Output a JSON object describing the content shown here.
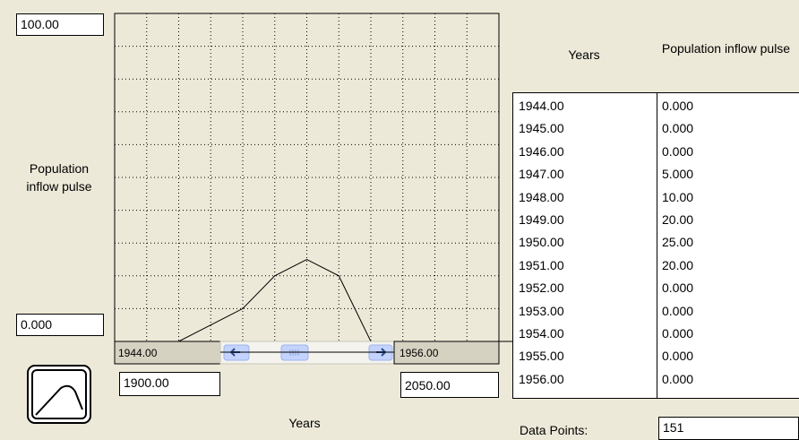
{
  "y_axis": {
    "max_field": "100.00",
    "min_field": "0.000",
    "label": "Population inflow pulse"
  },
  "x_axis": {
    "view_start": "1944.00",
    "view_end": "1956.00",
    "min_field": "1900.00",
    "max_field": "2050.00",
    "label": "Years"
  },
  "table": {
    "headers": [
      "Years",
      "Population inflow pulse"
    ],
    "rows": [
      [
        "1944.00",
        "0.000"
      ],
      [
        "1945.00",
        "0.000"
      ],
      [
        "1946.00",
        "0.000"
      ],
      [
        "1947.00",
        "5.000"
      ],
      [
        "1948.00",
        "10.00"
      ],
      [
        "1949.00",
        "20.00"
      ],
      [
        "1950.00",
        "25.00"
      ],
      [
        "1951.00",
        "20.00"
      ],
      [
        "1952.00",
        "0.000"
      ],
      [
        "1953.00",
        "0.000"
      ],
      [
        "1954.00",
        "0.000"
      ],
      [
        "1955.00",
        "0.000"
      ],
      [
        "1956.00",
        "0.000"
      ]
    ]
  },
  "data_points_label": "Data Points:",
  "data_points": "151",
  "chart_data": {
    "type": "line",
    "x": [
      1944,
      1945,
      1946,
      1947,
      1948,
      1949,
      1950,
      1951,
      1952,
      1953,
      1954,
      1955,
      1956
    ],
    "series": [
      {
        "values": [
          0,
          0,
          0,
          5,
          10,
          20,
          25,
          20,
          0,
          0,
          0,
          0,
          0
        ],
        "color": "#000000"
      }
    ],
    "xlim": [
      1944,
      1956
    ],
    "ylim": [
      0,
      100
    ],
    "xticks": [
      1944,
      1945,
      1946,
      1947,
      1948,
      1949,
      1950,
      1951,
      1952,
      1953,
      1954,
      1955,
      1956
    ],
    "yticks": [
      0,
      10,
      20,
      30,
      40,
      50,
      60,
      70,
      80,
      90,
      100
    ],
    "grid": true
  }
}
